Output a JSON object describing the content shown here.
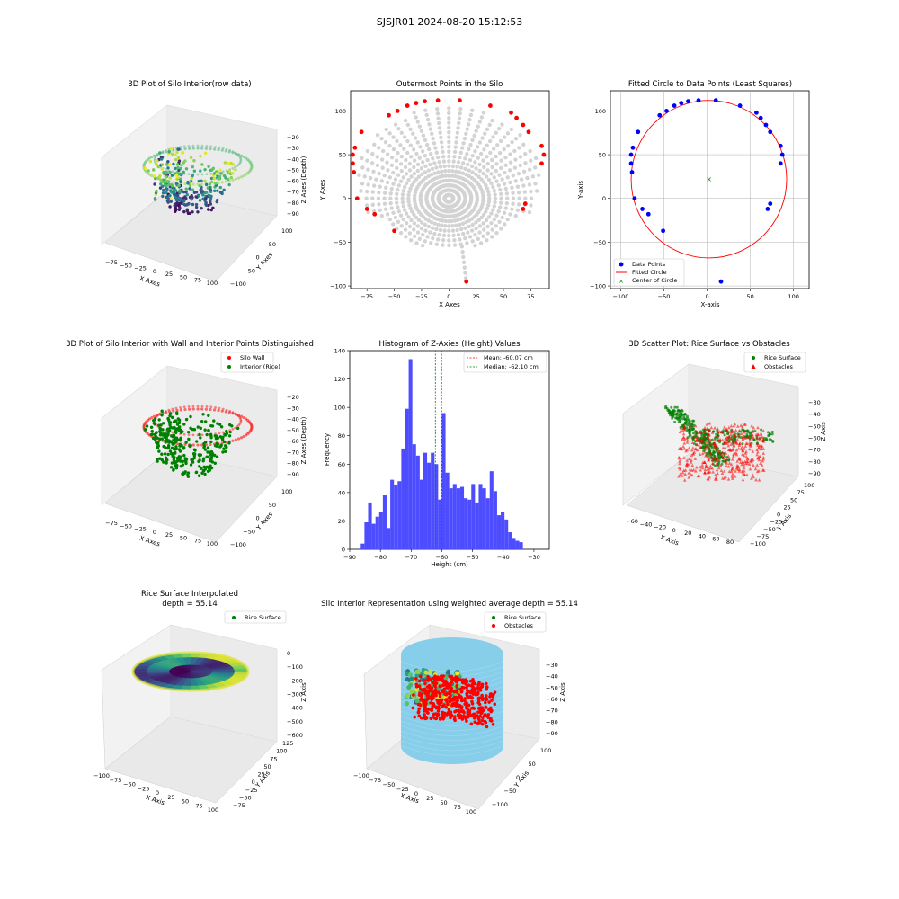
{
  "suptitle": "SJSJR01 2024-08-20 15:12:53",
  "panels": {
    "p1": {
      "title": "3D Plot of Silo Interior(row data)",
      "xlabel": "X Axes",
      "ylabel": "Y Axes",
      "zlabel": "Z Axes (Depth)",
      "xticks": [
        "−75",
        "−50",
        "−25",
        "0",
        "25",
        "50",
        "75",
        "100"
      ],
      "yticks": [
        "100",
        "50",
        "0",
        "−50",
        "−100"
      ],
      "zticks": [
        "−20",
        "−30",
        "−40",
        "−50",
        "−60",
        "−70",
        "−80",
        "−90"
      ]
    },
    "p4": {
      "title": "3D Plot of Silo Interior with Wall and Interior Points Distinguished",
      "xlabel": "X Axes",
      "ylabel": "Y Axes",
      "zlabel": "Z Axes (Depth)",
      "xticks": [
        "−75",
        "−50",
        "−25",
        "0",
        "25",
        "50",
        "75",
        "100"
      ],
      "yticks": [
        "100",
        "50",
        "0",
        "−50",
        "−100"
      ],
      "zticks": [
        "−20",
        "−30",
        "−40",
        "−50",
        "−60",
        "−70",
        "−80",
        "−90"
      ],
      "legend": [
        "Silo Wall",
        "Interior (Rice)"
      ]
    },
    "p6": {
      "title": "3D Scatter Plot: Rice Surface vs Obstacles",
      "xlabel": "X Axis",
      "ylabel": "Y Axis",
      "zlabel": "Z Axis",
      "xticks": [
        "−60",
        "−40",
        "−20",
        "0",
        "20",
        "40",
        "60",
        "80"
      ],
      "yticks": [
        "100",
        "75",
        "50",
        "25",
        "0",
        "−25",
        "−50",
        "−75",
        "−100"
      ],
      "zticks": [
        "−30",
        "−40",
        "−50",
        "−60",
        "−70",
        "−80",
        "−90"
      ],
      "legend": [
        "Rice Surface",
        "Obstacles"
      ]
    },
    "p7": {
      "title": "Rice Surface Interpolated",
      "subtitle": "depth = 55.14",
      "xlabel": "X Axis",
      "ylabel": "Y Axis",
      "zlabel": "Z Axis",
      "xticks": [
        "−100",
        "−75",
        "−50",
        "−25",
        "0",
        "25",
        "50",
        "75",
        "100"
      ],
      "yticks": [
        "125",
        "100",
        "75",
        "50",
        "25",
        "0",
        "−25",
        "−50",
        "−75"
      ],
      "zticks": [
        "0",
        "−100",
        "−200",
        "−300",
        "−400",
        "−500",
        "−600"
      ],
      "legend": [
        "Rice Surface"
      ]
    },
    "p8": {
      "title": "Silo Interior Representation using weighted average depth = 55.14",
      "xlabel": "X Axis",
      "ylabel": "Y Axis",
      "zlabel": "Z Axis",
      "xticks": [
        "−100",
        "−75",
        "−50",
        "−25",
        "0",
        "25",
        "50",
        "75",
        "100"
      ],
      "yticks": [
        "100",
        "50",
        "0",
        "−50",
        "−100"
      ],
      "zticks": [
        "−30",
        "−40",
        "−50",
        "−60",
        "−70",
        "−80",
        "−90"
      ],
      "legend": [
        "Rice Surface",
        "Obstacles"
      ]
    }
  },
  "colors": {
    "red": "#ff0000",
    "green": "#008000",
    "blue": "#0000ff",
    "gray": "#d3d3d3",
    "hist": "#4d4dff",
    "sky": "#87ceeb",
    "viridis": [
      "#440154",
      "#3b528b",
      "#21918c",
      "#5ec962",
      "#fde725"
    ]
  },
  "chart_data": [
    {
      "id": "outermost",
      "type": "scatter",
      "title": "Outermost Points in the Silo",
      "xlabel": "X Axes",
      "ylabel": "Y Axes",
      "xlim": [
        -90,
        92
      ],
      "ylim": [
        -103,
        123
      ],
      "xticks": [
        -75,
        -50,
        -25,
        0,
        25,
        50,
        75
      ],
      "yticks": [
        -100,
        -50,
        0,
        50,
        100
      ],
      "series": [
        {
          "color": "#d3d3d3",
          "description": "all points (fan of rays)"
        },
        {
          "color": "#ff0000",
          "points": [
            [
              -87,
              30
            ],
            [
              -88,
              40
            ],
            [
              -88,
              50
            ],
            [
              -86,
              58
            ],
            [
              -84,
              0
            ],
            [
              -80,
              76
            ],
            [
              -75,
              -12
            ],
            [
              -68,
              -18
            ],
            [
              -55,
              95
            ],
            [
              -47,
              100
            ],
            [
              -38,
              106
            ],
            [
              -30,
              109
            ],
            [
              -22,
              111
            ],
            [
              -10,
              112
            ],
            [
              10,
              112
            ],
            [
              38,
              106
            ],
            [
              57,
              98
            ],
            [
              62,
              92
            ],
            [
              68,
              84
            ],
            [
              73,
              76
            ],
            [
              85,
              60
            ],
            [
              87,
              50
            ],
            [
              85,
              40
            ],
            [
              70,
              -6
            ],
            [
              68,
              -12
            ],
            [
              -50,
              -37
            ],
            [
              16,
              -95
            ]
          ]
        }
      ]
    },
    {
      "id": "fitted",
      "type": "scatter",
      "title": "Fitted Circle to Data Points (Least Squares)",
      "xlabel": "X-axis",
      "ylabel": "Y-axis",
      "xlim": [
        -112,
        118
      ],
      "ylim": [
        -103,
        123
      ],
      "xticks": [
        -100,
        -50,
        0,
        50,
        100
      ],
      "yticks": [
        -100,
        -50,
        0,
        50,
        100
      ],
      "grid": true,
      "legend": [
        "Data Points",
        "Fitted Circle",
        "Center of Circle"
      ],
      "legend_loc": "lower left",
      "points": [
        [
          -87,
          30
        ],
        [
          -88,
          40
        ],
        [
          -88,
          50
        ],
        [
          -86,
          58
        ],
        [
          -84,
          0
        ],
        [
          -80,
          76
        ],
        [
          -75,
          -12
        ],
        [
          -68,
          -18
        ],
        [
          -55,
          95
        ],
        [
          -47,
          100
        ],
        [
          -38,
          106
        ],
        [
          -30,
          109
        ],
        [
          -22,
          111
        ],
        [
          -10,
          112
        ],
        [
          10,
          112
        ],
        [
          38,
          106
        ],
        [
          57,
          98
        ],
        [
          62,
          92
        ],
        [
          68,
          84
        ],
        [
          73,
          76
        ],
        [
          85,
          60
        ],
        [
          87,
          50
        ],
        [
          85,
          40
        ],
        [
          73,
          -6
        ],
        [
          70,
          -12
        ],
        [
          -51,
          -37
        ],
        [
          16,
          -95
        ]
      ],
      "circle": {
        "cx": 2,
        "cy": 22,
        "r": 90
      },
      "center": [
        2,
        22
      ]
    },
    {
      "id": "histogram",
      "type": "bar",
      "title": "Histogram of Z-Axies (Height) Values",
      "xlabel": "Height (cm)",
      "ylabel": "Frequency",
      "xlim": [
        -90,
        -25
      ],
      "ylim": [
        0,
        140
      ],
      "xticks": [
        -90,
        -80,
        -70,
        -60,
        -50,
        -40,
        -30
      ],
      "yticks": [
        0,
        20,
        40,
        60,
        80,
        100,
        120,
        140
      ],
      "bin_start": -86.4,
      "bin_width": 1.2,
      "values": [
        4,
        19,
        33,
        18,
        23,
        26,
        38,
        15,
        49,
        45,
        48,
        71,
        99,
        134,
        74,
        66,
        49,
        68,
        61,
        68,
        60,
        35,
        96,
        54,
        43,
        46,
        43,
        44,
        36,
        35,
        46,
        33,
        46,
        43,
        36,
        55,
        41,
        24,
        26,
        21,
        12,
        8,
        6,
        5
      ],
      "mean": -60.07,
      "median": -62.1,
      "legend": [
        "Mean: -60.07 cm",
        "Median: -62.10 cm"
      ]
    }
  ]
}
